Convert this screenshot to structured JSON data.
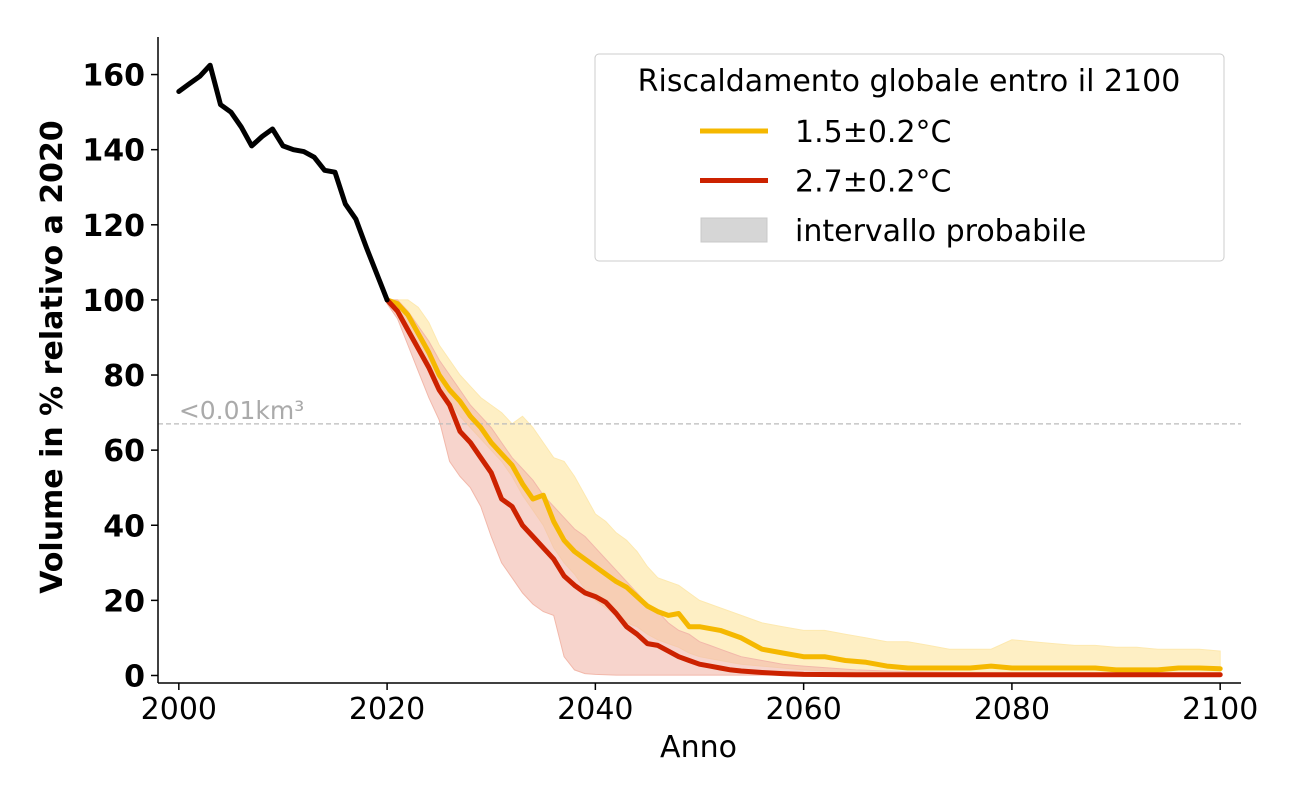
{
  "chart_data": {
    "type": "line",
    "xlabel": "Anno",
    "ylabel": "Volume in % relativo a 2020",
    "xlim": [
      1998,
      2102
    ],
    "ylim": [
      -2,
      170
    ],
    "xticks": [
      2000,
      2020,
      2040,
      2060,
      2080,
      2100
    ],
    "xtick_labels": [
      "2000",
      "2020",
      "2040",
      "2060",
      "2080",
      "2100"
    ],
    "yticks": [
      0,
      20,
      40,
      60,
      80,
      100,
      120,
      140,
      160
    ],
    "ytick_labels": [
      "0",
      "20",
      "40",
      "60",
      "80",
      "100",
      "120",
      "140",
      "160"
    ],
    "grid": false,
    "legend": {
      "title": "Riscaldamento globale entro il 2100",
      "position": "top-right",
      "entries": [
        {
          "label": "1.5±0.2°C",
          "kind": "line",
          "color": "#f5b800"
        },
        {
          "label": "2.7±0.2°C",
          "kind": "line",
          "color": "#cc2200"
        },
        {
          "label": "intervallo probabile",
          "kind": "patch",
          "color": "#d6d6d6"
        }
      ]
    },
    "threshold": {
      "y": 67,
      "label": "<0.01km³",
      "color": "#aaaaaa"
    },
    "historical": {
      "color": "#000000",
      "x": [
        2000,
        2001,
        2002,
        2003,
        2004,
        2005,
        2006,
        2007,
        2008,
        2009,
        2010,
        2011,
        2012,
        2013,
        2014,
        2015,
        2016,
        2017,
        2018,
        2019,
        2020
      ],
      "y": [
        155.5,
        157.5,
        159.5,
        162.5,
        152,
        150,
        146,
        141,
        143.5,
        145.5,
        141,
        140,
        139.5,
        138,
        134.5,
        134,
        125.5,
        121.5,
        114,
        107,
        100
      ]
    },
    "series": [
      {
        "name": "1.5±0.2°C",
        "color": "#f5b800",
        "band_color": "#fde9b0",
        "x": [
          2020,
          2021,
          2022,
          2023,
          2024,
          2025,
          2026,
          2027,
          2028,
          2029,
          2030,
          2031,
          2032,
          2033,
          2034,
          2035,
          2036,
          2037,
          2038,
          2039,
          2040,
          2041,
          2042,
          2043,
          2044,
          2045,
          2046,
          2047,
          2048,
          2049,
          2050,
          2052,
          2054,
          2056,
          2058,
          2060,
          2062,
          2064,
          2066,
          2068,
          2070,
          2072,
          2074,
          2076,
          2078,
          2080,
          2082,
          2084,
          2086,
          2088,
          2090,
          2092,
          2094,
          2096,
          2098,
          2100
        ],
        "y": [
          100,
          99,
          96,
          91,
          86,
          80,
          76,
          73,
          69,
          66,
          62,
          59,
          56,
          51,
          47,
          48,
          41,
          36,
          33,
          31,
          29,
          27,
          25,
          23.5,
          21,
          18.5,
          17,
          16,
          16.5,
          13,
          13,
          12,
          10,
          7,
          6,
          5,
          5,
          4,
          3.5,
          2.5,
          2,
          2,
          2,
          2,
          2.5,
          2,
          2,
          2,
          2,
          2,
          1.5,
          1.5,
          1.5,
          2,
          2,
          1.8
        ],
        "lower": [
          99,
          97,
          92,
          86,
          81,
          76,
          73,
          69,
          66,
          63,
          60,
          57,
          53,
          48,
          44,
          40,
          34,
          30,
          27,
          23,
          20,
          18,
          16,
          14,
          13,
          11,
          9.5,
          8.5,
          7.5,
          6,
          5,
          4,
          3,
          2.5,
          2,
          1.5,
          1.2,
          1,
          0.8,
          0.6,
          0.5,
          0.4,
          0.4,
          0.3,
          0.3,
          0.3,
          0.3,
          0.3,
          0.3,
          0.3,
          0.3,
          0.3,
          0.3,
          0.3,
          0.3,
          0.3
        ],
        "upper": [
          100,
          100,
          100,
          98,
          94,
          88,
          84,
          80,
          77,
          74,
          72,
          70,
          67,
          69,
          66,
          62,
          58,
          57,
          53,
          48,
          43,
          41,
          38,
          36,
          33,
          29,
          26,
          25,
          24,
          22,
          20,
          18,
          16,
          14,
          13,
          12,
          12,
          11,
          10,
          9,
          9,
          8,
          7,
          7,
          7,
          9.5,
          9,
          8.5,
          8,
          8,
          7.5,
          7.5,
          7,
          7,
          7,
          6.5
        ]
      },
      {
        "name": "2.7±0.2°C",
        "color": "#cc2200",
        "band_color": "#f2b8aa",
        "x": [
          2020,
          2021,
          2022,
          2023,
          2024,
          2025,
          2026,
          2027,
          2028,
          2029,
          2030,
          2031,
          2032,
          2033,
          2034,
          2035,
          2036,
          2037,
          2038,
          2039,
          2040,
          2041,
          2042,
          2043,
          2044,
          2045,
          2046,
          2047,
          2048,
          2049,
          2050,
          2051,
          2052,
          2053,
          2054,
          2056,
          2058,
          2060,
          2065,
          2070,
          2075,
          2080,
          2085,
          2090,
          2095,
          2100
        ],
        "y": [
          100,
          97,
          92,
          87,
          82,
          76,
          72,
          65,
          62,
          58,
          54,
          47,
          45,
          40,
          37,
          34,
          31,
          26.5,
          24,
          22,
          21,
          19.5,
          16.5,
          13,
          11,
          8.5,
          8,
          6.5,
          5,
          4,
          3,
          2.5,
          2,
          1.5,
          1.2,
          0.8,
          0.5,
          0.3,
          0.2,
          0.2,
          0.2,
          0.2,
          0.2,
          0.2,
          0.2,
          0.2
        ],
        "lower": [
          99,
          95,
          88,
          81,
          74,
          68,
          57,
          53,
          50,
          45,
          37,
          30,
          26,
          22,
          19,
          17,
          16,
          5,
          1.5,
          0.5,
          0.3,
          0.2,
          0.1,
          0.1,
          0.1,
          0.1,
          0.1,
          0.1,
          0.1,
          0.1,
          0.1,
          0.1,
          0.1,
          0.1,
          0.1,
          0.1,
          0.1,
          0.1,
          0.1,
          0.1,
          0.1,
          0.1,
          0.1,
          0.1,
          0.1,
          0.1
        ],
        "upper": [
          100,
          100,
          97,
          93,
          89,
          84,
          80,
          76,
          72,
          69,
          66,
          62,
          58,
          55,
          52,
          48,
          45,
          42,
          39,
          37,
          34,
          31,
          28,
          25,
          22,
          19,
          17,
          14,
          12,
          11,
          9,
          8,
          7,
          6,
          5,
          4,
          3,
          2.5,
          1.5,
          1,
          0.8,
          0.6,
          0.5,
          0.5,
          0.5,
          0.5
        ]
      }
    ]
  }
}
